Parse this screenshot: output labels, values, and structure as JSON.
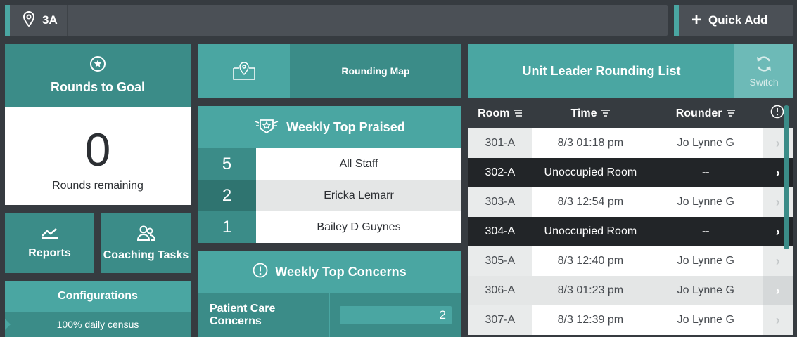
{
  "topbar": {
    "unit": "3A",
    "quick_add_label": "Quick Add"
  },
  "goal": {
    "title": "Rounds to Goal",
    "count": "0",
    "remaining_label": "Rounds remaining"
  },
  "tiles": {
    "reports": "Reports",
    "coaching": "Coaching Tasks"
  },
  "config": {
    "title": "Configurations",
    "row": "100% daily census"
  },
  "map": {
    "label": "Rounding Map"
  },
  "praised": {
    "title": "Weekly Top Praised",
    "rows": [
      {
        "count": "5",
        "name": "All Staff"
      },
      {
        "count": "2",
        "name": "Ericka Lemarr"
      },
      {
        "count": "1",
        "name": "Bailey D Guynes"
      }
    ]
  },
  "concerns": {
    "title": "Weekly Top Concerns",
    "rows": [
      {
        "label": "Patient Care Concerns",
        "count": "2"
      }
    ]
  },
  "rounding_list": {
    "title": "Unit Leader Rounding List",
    "switch_label": "Switch",
    "columns": {
      "room": "Room",
      "time": "Time",
      "rounder": "Rounder"
    },
    "rows": [
      {
        "room": "301-A",
        "time": "8/3 01:18 pm",
        "rounder": "Jo Lynne G"
      },
      {
        "room": "302-A",
        "time": "Unoccupied Room",
        "rounder": "--"
      },
      {
        "room": "303-A",
        "time": "8/3 12:54 pm",
        "rounder": "Jo Lynne G"
      },
      {
        "room": "304-A",
        "time": "Unoccupied Room",
        "rounder": "--"
      },
      {
        "room": "305-A",
        "time": "8/3 12:40 pm",
        "rounder": "Jo Lynne G"
      },
      {
        "room": "306-A",
        "time": "8/3 01:23 pm",
        "rounder": "Jo Lynne G"
      },
      {
        "room": "307-A",
        "time": "8/3 12:39 pm",
        "rounder": "Jo Lynne G"
      }
    ]
  },
  "colors": {
    "teal": "#4aa6a2",
    "teal_dark": "#3b8c88",
    "background": "#363b40"
  }
}
